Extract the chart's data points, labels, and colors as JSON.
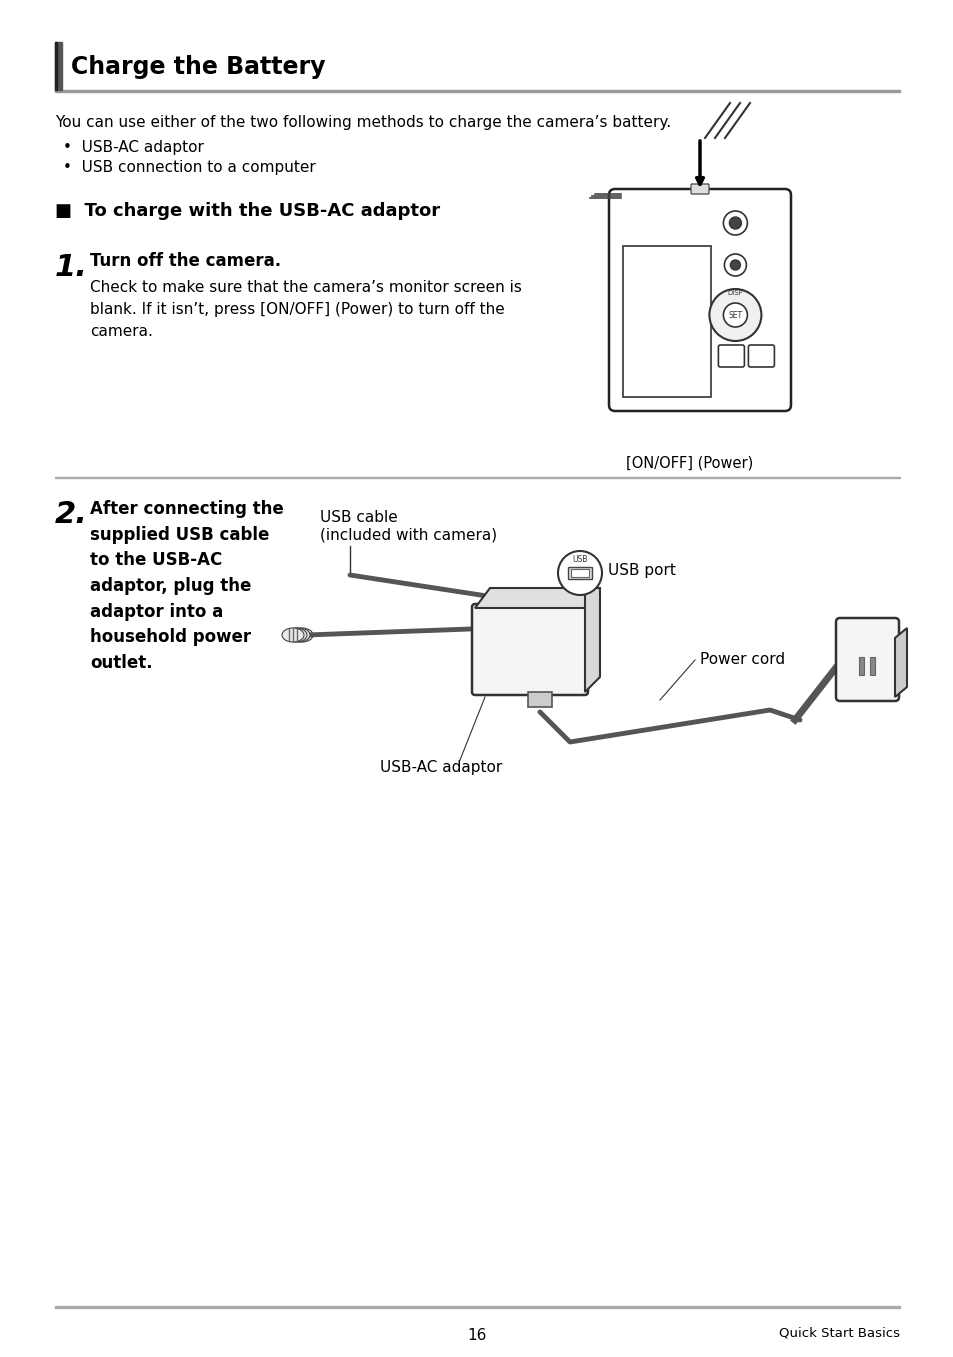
{
  "page_number": "16",
  "page_section": "Quick Start Basics",
  "bg_color": "#ffffff",
  "title": "Charge the Battery",
  "intro_text": "You can use either of the two following methods to charge the camera’s battery.",
  "bullets": [
    "USB-AC adaptor",
    "USB connection to a computer"
  ],
  "section_heading": "■  To charge with the USB-AC adaptor",
  "step1_num": "1.",
  "step1_bold": "Turn off the camera.",
  "step1_body": "Check to make sure that the camera’s monitor screen is\nblank. If it isn’t, press [ON/OFF] (Power) to turn off the\ncamera.",
  "step1_caption": "[ON/OFF] (Power)",
  "step2_num": "2.",
  "step2_bold": "After connecting the\nsupplied USB cable\nto the USB-AC\nadaptor, plug the\nadaptor into a\nhousehold power\noutlet.",
  "step2_label1_line1": "USB cable",
  "step2_label1_line2": "(included with camera)",
  "step2_label2": "USB port",
  "step2_label3": "Power cord",
  "step2_label4": "USB-AC adaptor",
  "separator_color": "#aaaaaa",
  "text_color": "#000000",
  "lm": 55,
  "rm": 900
}
